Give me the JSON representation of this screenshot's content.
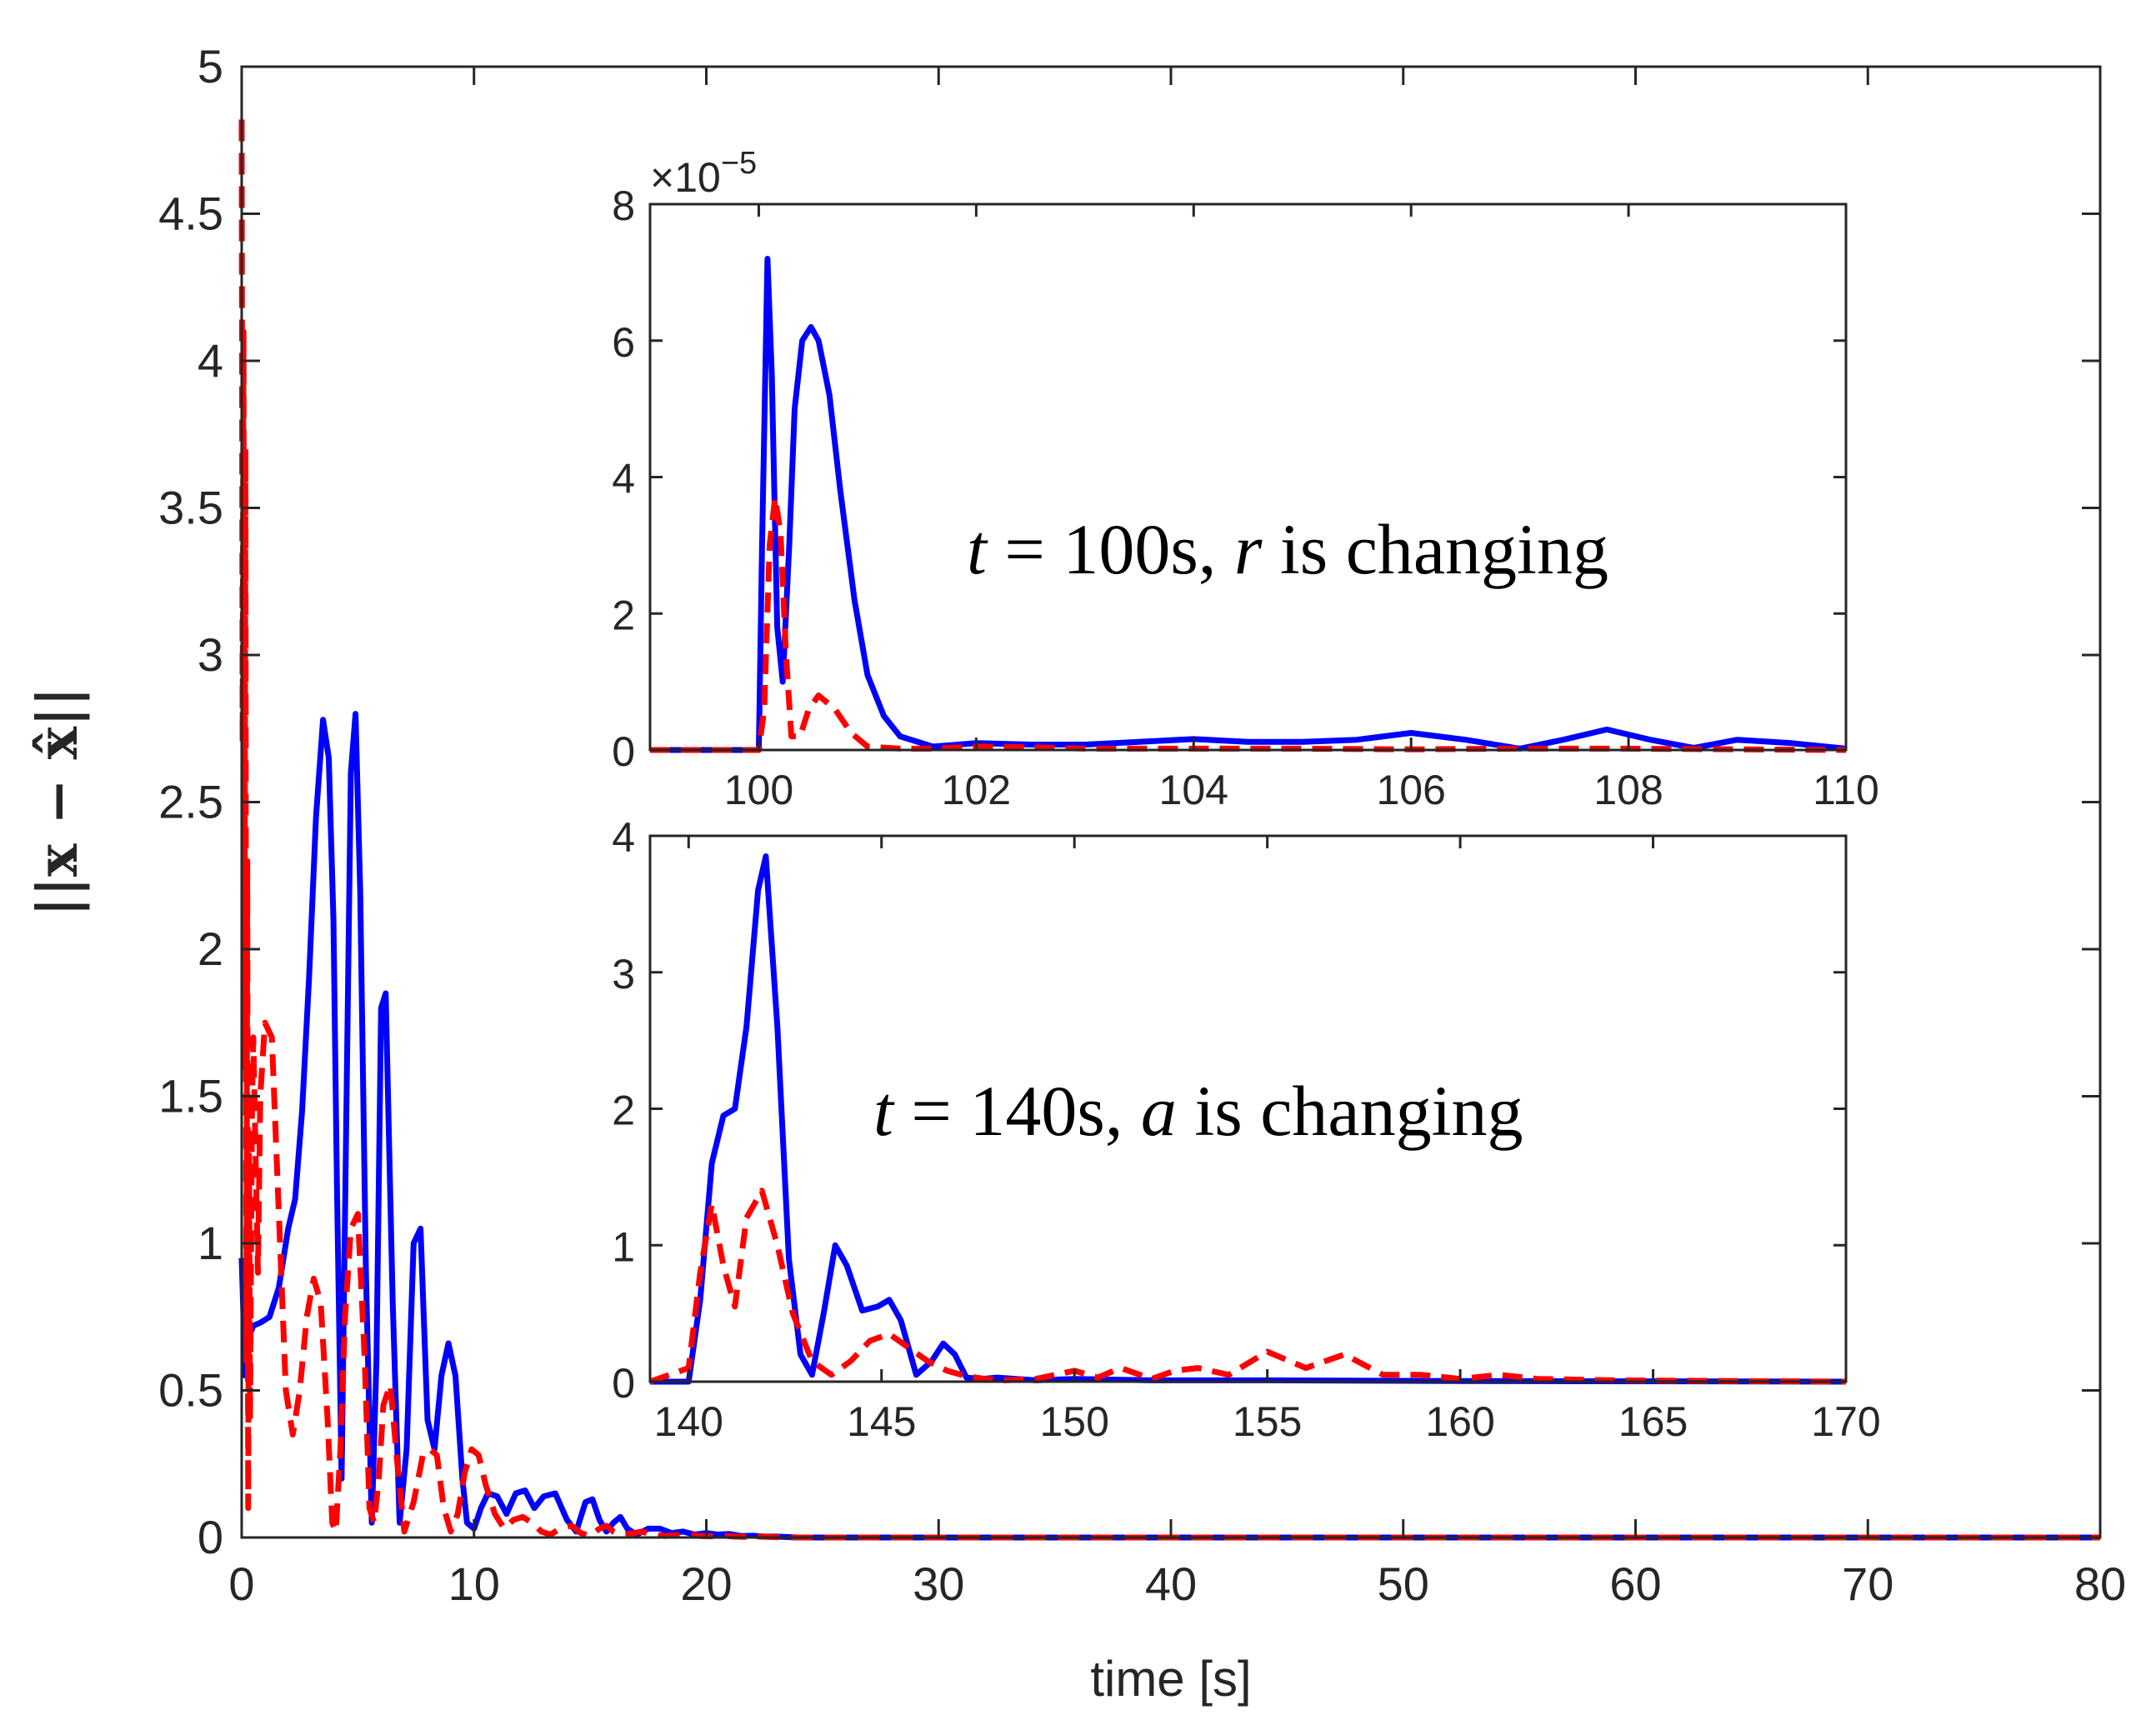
{
  "chart_data": [
    {
      "type": "line",
      "name": "main",
      "xlabel": "time [s]",
      "ylabel": "||x − x̂||",
      "xlim": [
        0,
        80
      ],
      "ylim": [
        0,
        5
      ],
      "xticks": [
        0,
        10,
        20,
        30,
        40,
        50,
        60,
        70,
        80
      ],
      "yticks": [
        0,
        0.5,
        1,
        1.5,
        2,
        2.5,
        3,
        3.5,
        4,
        4.5,
        5
      ],
      "series": [
        {
          "name": "solid-blue",
          "color": "#0000ff",
          "style": "solid",
          "x": [
            0,
            0.15,
            0.3,
            0.5,
            0.8,
            1.2,
            1.6,
            2.0,
            2.3,
            2.6,
            2.9,
            3.2,
            3.5,
            3.75,
            3.95,
            4.1,
            4.3,
            4.5,
            4.7,
            4.9,
            5.1,
            5.35,
            5.6,
            5.8,
            6.0,
            6.2,
            6.5,
            6.8,
            7.1,
            7.4,
            7.7,
            8.0,
            8.3,
            8.6,
            8.9,
            9.2,
            9.5,
            9.7,
            10.0,
            10.3,
            10.6,
            11.0,
            11.4,
            11.8,
            12.2,
            12.6,
            13.0,
            13.5,
            14.0,
            14.4,
            14.8,
            15.1,
            15.4,
            15.7,
            16.0,
            16.3,
            16.6,
            17.0,
            17.5,
            18.0,
            18.5,
            19.0,
            19.5,
            20.0,
            20.5,
            21.0,
            21.5,
            22.0,
            22.5,
            23.0,
            24.0,
            80
          ],
          "y": [
            0.95,
            0.55,
            0.68,
            0.72,
            0.73,
            0.75,
            0.85,
            1.05,
            1.15,
            1.45,
            1.9,
            2.45,
            2.78,
            2.65,
            2.1,
            1.2,
            0.2,
            1.4,
            2.6,
            2.8,
            2.2,
            0.9,
            0.05,
            0.6,
            1.8,
            1.85,
            0.8,
            0.05,
            0.3,
            1.0,
            1.05,
            0.4,
            0.3,
            0.55,
            0.66,
            0.55,
            0.2,
            0.05,
            0.03,
            0.1,
            0.15,
            0.14,
            0.08,
            0.15,
            0.16,
            0.1,
            0.14,
            0.15,
            0.06,
            0.02,
            0.12,
            0.13,
            0.06,
            0.02,
            0.05,
            0.07,
            0.03,
            0.01,
            0.03,
            0.03,
            0.015,
            0.02,
            0.01,
            0.015,
            0.01,
            0.012,
            0.005,
            0.006,
            0.003,
            0.003,
            0,
            0
          ]
        },
        {
          "name": "dashed-red",
          "color": "#ff0000",
          "style": "dashed",
          "x": [
            0,
            0.04,
            0.08,
            0.12,
            0.16,
            0.2,
            0.24,
            0.28,
            0.32,
            0.36,
            0.4,
            0.45,
            0.5,
            0.6,
            0.7,
            0.8,
            1.0,
            1.3,
            1.6,
            1.9,
            2.2,
            2.5,
            2.8,
            3.1,
            3.4,
            3.7,
            3.9,
            4.05,
            4.25,
            4.45,
            4.7,
            5.0,
            5.3,
            5.5,
            5.7,
            5.9,
            6.1,
            6.4,
            6.7,
            7.0,
            7.4,
            7.8,
            8.1,
            8.4,
            8.7,
            9.0,
            9.3,
            9.6,
            9.9,
            10.2,
            10.5,
            10.9,
            11.3,
            11.7,
            12.1,
            12.5,
            12.9,
            13.3,
            13.7,
            14.2,
            14.6,
            15.0,
            15.4,
            15.7,
            16.0,
            16.3,
            16.7,
            17.2,
            17.7,
            18.2,
            18.7,
            19.2,
            19.7,
            20.2,
            20.7,
            21.2,
            21.7,
            22.2,
            23.0,
            24.0,
            80
          ],
          "y": [
            4.82,
            2.7,
            4.1,
            1.6,
            3.7,
            0.6,
            2.3,
            0.1,
            1.3,
            0.4,
            0.9,
            1.5,
            1.7,
            1.3,
            0.9,
            1.5,
            1.75,
            1.7,
            1.1,
            0.5,
            0.35,
            0.5,
            0.75,
            0.88,
            0.8,
            0.4,
            0.05,
            0.02,
            0.3,
            0.75,
            1.05,
            1.1,
            0.6,
            0.1,
            0.05,
            0.2,
            0.45,
            0.52,
            0.25,
            0.02,
            0.12,
            0.28,
            0.3,
            0.28,
            0.1,
            0.02,
            0.08,
            0.22,
            0.3,
            0.28,
            0.18,
            0.08,
            0.03,
            0.06,
            0.07,
            0.05,
            0.02,
            0.01,
            0.03,
            0.04,
            0.015,
            0.005,
            0.03,
            0.04,
            0.02,
            0.01,
            0.012,
            0.02,
            0.01,
            0.005,
            0.008,
            0.01,
            0.005,
            0.004,
            0.006,
            0.003,
            0.002,
            0.003,
            0.001,
            0,
            0
          ]
        }
      ]
    },
    {
      "type": "line",
      "name": "inset-top",
      "xlim": [
        99,
        110
      ],
      "ylim": [
        0,
        8
      ],
      "xticks": [
        100,
        102,
        104,
        106,
        108,
        110
      ],
      "yticks": [
        0,
        2,
        4,
        6,
        8
      ],
      "exponent_label": "×10",
      "exponent_power": "−5",
      "annotation": {
        "t": "t",
        "eq": " = 100s, ",
        "var": "r",
        "rest": " is changing"
      },
      "series": [
        {
          "name": "solid-blue",
          "color": "#0000ff",
          "style": "solid",
          "x": [
            99,
            100,
            100.03,
            100.08,
            100.12,
            100.17,
            100.22,
            100.28,
            100.33,
            100.4,
            100.48,
            100.55,
            100.65,
            100.75,
            100.88,
            101.0,
            101.15,
            101.3,
            101.6,
            102.0,
            102.5,
            103.0,
            103.5,
            104.0,
            104.5,
            105.0,
            105.5,
            106.0,
            106.5,
            107.0,
            107.4,
            107.8,
            108.2,
            108.6,
            109.0,
            109.5,
            110
          ],
          "y": [
            0,
            0,
            3.0,
            7.2,
            5.5,
            1.8,
            1.0,
            3.0,
            5.0,
            6.0,
            6.2,
            6.0,
            5.2,
            3.8,
            2.2,
            1.1,
            0.5,
            0.2,
            0.05,
            0.1,
            0.08,
            0.08,
            0.12,
            0.16,
            0.12,
            0.12,
            0.15,
            0.25,
            0.15,
            0.02,
            0.15,
            0.3,
            0.15,
            0.03,
            0.15,
            0.1,
            0.02
          ]
        },
        {
          "name": "dashed-red",
          "color": "#ff0000",
          "style": "dashed",
          "x": [
            99,
            100,
            100.05,
            100.1,
            100.15,
            100.2,
            100.25,
            100.3,
            100.38,
            100.46,
            100.55,
            100.7,
            100.85,
            101.0,
            101.3,
            101.6,
            102.0,
            102.5,
            103.0,
            104.0,
            105.0,
            106.0,
            107.0,
            108.0,
            109.0,
            110
          ],
          "y": [
            0,
            0,
            0.6,
            3.0,
            3.7,
            3.2,
            1.4,
            0.2,
            0.2,
            0.6,
            0.8,
            0.6,
            0.25,
            0.05,
            0.02,
            0.02,
            0.05,
            0.04,
            0.02,
            0.02,
            0.02,
            0.01,
            0.02,
            0.02,
            0.01,
            0
          ]
        }
      ]
    },
    {
      "type": "line",
      "name": "inset-bottom",
      "xlim": [
        139,
        170
      ],
      "ylim": [
        0,
        4
      ],
      "xticks": [
        140,
        145,
        150,
        155,
        160,
        165,
        170
      ],
      "yticks": [
        0,
        1,
        2,
        3,
        4
      ],
      "annotation": {
        "t": "t",
        "eq": " = 140s, ",
        "var": "a",
        "rest": " is changing"
      },
      "series": [
        {
          "name": "solid-blue",
          "color": "#0000ff",
          "style": "solid",
          "x": [
            139,
            140,
            140.3,
            140.6,
            140.9,
            141.2,
            141.5,
            141.8,
            142.0,
            142.3,
            142.6,
            142.9,
            143.2,
            143.5,
            143.8,
            144.1,
            144.5,
            144.9,
            145.2,
            145.5,
            145.9,
            146.3,
            146.6,
            146.9,
            147.2,
            147.6,
            148.0,
            148.5,
            149.0,
            150.0,
            152.0,
            155.0,
            160.0,
            170
          ],
          "y": [
            0,
            0,
            0.6,
            1.6,
            1.95,
            2.0,
            2.6,
            3.6,
            3.85,
            2.6,
            0.9,
            0.2,
            0.05,
            0.5,
            1.0,
            0.85,
            0.52,
            0.55,
            0.6,
            0.45,
            0.05,
            0.15,
            0.28,
            0.2,
            0.03,
            0.02,
            0.03,
            0.02,
            0.01,
            0.02,
            0.01,
            0.01,
            0.005,
            0
          ]
        },
        {
          "name": "dashed-red",
          "color": "#ff0000",
          "style": "dashed",
          "x": [
            139,
            140,
            140.3,
            140.6,
            140.9,
            141.2,
            141.5,
            141.9,
            142.3,
            142.7,
            143.2,
            143.7,
            144.2,
            144.7,
            145.2,
            145.7,
            146.2,
            146.7,
            147.2,
            147.7,
            148.2,
            149.0,
            150.0,
            150.6,
            151.2,
            152.0,
            152.6,
            153.2,
            154.0,
            155.0,
            156.0,
            157.0,
            158.0,
            159.0,
            160.0,
            161.0,
            162.0,
            164.0,
            170
          ],
          "y": [
            0,
            0.1,
            0.8,
            1.3,
            0.85,
            0.55,
            1.2,
            1.4,
            1.0,
            0.5,
            0.15,
            0.05,
            0.15,
            0.3,
            0.35,
            0.25,
            0.15,
            0.08,
            0.04,
            0.02,
            0.01,
            0.02,
            0.08,
            0.03,
            0.1,
            0.02,
            0.08,
            0.1,
            0.05,
            0.22,
            0.1,
            0.2,
            0.05,
            0.05,
            0.02,
            0.05,
            0.02,
            0.01,
            0
          ]
        }
      ]
    }
  ]
}
